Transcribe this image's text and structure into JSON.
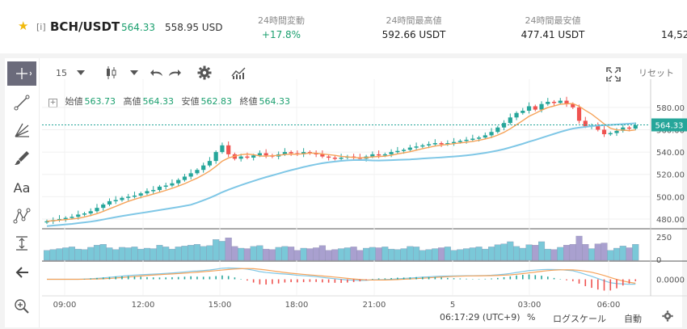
{
  "header": {
    "tag": "[i]",
    "pair": "BCH/USDT",
    "last_price": "564.33",
    "usd_price": "558.95 USD",
    "stats": [
      {
        "label": "24時間変動",
        "value": "+17.8%"
      },
      {
        "label": "24時間最高値",
        "value": "592.66 USDT"
      },
      {
        "label": "24時間最安値",
        "value": "477.41 USDT"
      }
    ],
    "truncated_value": "14,52"
  },
  "toolbar": {
    "interval": "15",
    "reset_label": "リセット"
  },
  "ohlc": {
    "open_label": "始値",
    "open": "563.73",
    "high_label": "高値",
    "high": "564.33",
    "low_label": "安値",
    "low": "562.83",
    "close_label": "終値",
    "close": "564.33"
  },
  "left_tools": [
    "crosshair-icon",
    "trend-line-icon",
    "fib-icon",
    "brush-icon",
    "text-icon",
    "pattern-icon",
    "measure-icon",
    "back-arrow-icon",
    "zoom-in-icon"
  ],
  "left_tools_text": "Aa",
  "footer": {
    "time": "06:17:29 (UTC+9)",
    "percent": "%",
    "log": "ログスケール",
    "auto": "自動"
  },
  "colors": {
    "up": "#26a69a",
    "down": "#ef5350",
    "ma_fast": "#f6a35a",
    "ma_slow": "#7fc7e6",
    "price_tag": "#26a69a"
  },
  "chart_data": {
    "type": "candlestick",
    "price_axis_ticks": [
      "580.00",
      "560.00",
      "540.00",
      "520.00",
      "500.00",
      "480.00"
    ],
    "price_axis_values": [
      580,
      560,
      540,
      520,
      500,
      480
    ],
    "current_price_label": "564.33",
    "current_price": 564.33,
    "time_ticks": [
      "09:00",
      "12:00",
      "15:00",
      "18:00",
      "21:00",
      "5",
      "03:00",
      "06:00"
    ],
    "volume_ticks": [
      "250",
      "0"
    ],
    "volume_tick_values": [
      250,
      0
    ],
    "indicator_ticks": [
      "0.0000"
    ],
    "ylim": [
      472,
      598
    ],
    "closes": [
      478,
      479,
      480,
      481,
      482,
      484,
      485,
      487,
      490,
      493,
      496,
      497,
      499,
      500,
      501,
      503,
      505,
      506,
      509,
      510,
      512,
      515,
      518,
      521,
      524,
      528,
      532,
      540,
      546,
      538,
      534,
      536,
      535,
      537,
      539,
      537,
      536,
      538,
      540,
      539,
      538,
      540,
      539,
      538,
      536,
      535,
      534,
      535,
      536,
      535,
      534,
      536,
      538,
      537,
      538,
      540,
      541,
      542,
      544,
      545,
      546,
      547,
      548,
      547,
      548,
      549,
      550,
      551,
      552,
      553,
      555,
      558,
      562,
      566,
      571,
      575,
      577,
      581,
      578,
      583,
      585,
      584,
      586,
      583,
      580,
      568,
      563,
      564,
      560,
      556,
      557,
      559,
      562,
      561,
      564
    ]
  }
}
